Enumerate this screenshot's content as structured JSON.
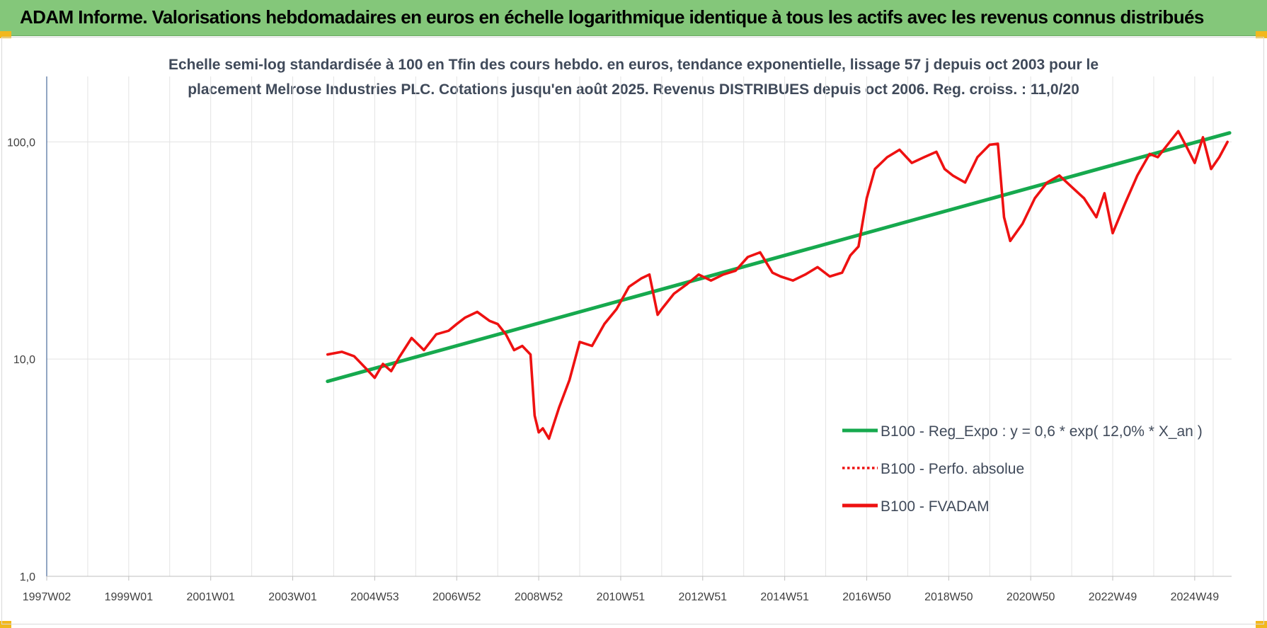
{
  "header": {
    "title": "ADAM Informe. Valorisations hebdomadaires en euros en échelle logarithmique identique à tous les actifs avec les revenus connus distribués"
  },
  "colors": {
    "banner": "#84c77a",
    "trend": "#16a94e",
    "price": "#ee1111",
    "grid": "#e3e3e3",
    "corner": "#f2b81d"
  },
  "chart_data": {
    "type": "line",
    "title": "",
    "subtitle_lines": [
      "Echelle semi-log standardisée à 100 en Tfin des cours hebdo. en euros, tendance exponentielle, lissage 57 j depuis oct 2003 pour le",
      "placement Melrose Industries PLC. Cotations jusqu'en août 2025. Revenus DISTRIBUES depuis oct 2006. Reg. croiss. : 11,0/20"
    ],
    "xlabel": "",
    "ylabel": "",
    "y_scale": "log",
    "ylim": [
      1,
      200
    ],
    "y_ticks": [
      {
        "value": 1,
        "label": "1,0"
      },
      {
        "value": 10,
        "label": "10,0"
      },
      {
        "value": 100,
        "label": "100,0"
      }
    ],
    "xlim": [
      1997.0,
      2025.9
    ],
    "x_ticks": [
      {
        "value": 1997.0,
        "label": "1997W02"
      },
      {
        "value": 1999.0,
        "label": "1999W01"
      },
      {
        "value": 2001.0,
        "label": "2001W01"
      },
      {
        "value": 2003.0,
        "label": "2003W01"
      },
      {
        "value": 2005.0,
        "label": "2004W53"
      },
      {
        "value": 2007.0,
        "label": "2006W52"
      },
      {
        "value": 2009.0,
        "label": "2008W52"
      },
      {
        "value": 2011.0,
        "label": "2010W51"
      },
      {
        "value": 2013.0,
        "label": "2012W51"
      },
      {
        "value": 2015.0,
        "label": "2014W51"
      },
      {
        "value": 2017.0,
        "label": "2016W50"
      },
      {
        "value": 2019.0,
        "label": "2018W50"
      },
      {
        "value": 2021.0,
        "label": "2020W50"
      },
      {
        "value": 2023.0,
        "label": "2022W49"
      },
      {
        "value": 2025.0,
        "label": "2024W49"
      }
    ],
    "grid": true,
    "legend_position": "bottom-right",
    "series": [
      {
        "name": "B100 - Reg_Expo : y = 0,6 * exp( 12,0% *  X_an )",
        "style": "solid",
        "color": "#16a94e",
        "x": [
          2003.85,
          2025.85
        ],
        "y": [
          7.9,
          110
        ]
      },
      {
        "name": "B100 - Perfo. absolue",
        "style": "dotted",
        "color": "#ee1111",
        "x": [],
        "y": []
      },
      {
        "name": "B100 - FVADAM",
        "style": "solid",
        "color": "#ee1111",
        "x": [
          2003.85,
          2004.2,
          2004.5,
          2004.8,
          2005.0,
          2005.2,
          2005.4,
          2005.6,
          2005.9,
          2006.2,
          2006.5,
          2006.8,
          2007.0,
          2007.2,
          2007.5,
          2007.8,
          2008.0,
          2008.2,
          2008.4,
          2008.6,
          2008.8,
          2008.9,
          2009.0,
          2009.1,
          2009.25,
          2009.5,
          2009.75,
          2010.0,
          2010.3,
          2010.6,
          2010.9,
          2011.2,
          2011.5,
          2011.7,
          2011.9,
          2012.0,
          2012.3,
          2012.6,
          2012.9,
          2013.2,
          2013.5,
          2013.8,
          2014.1,
          2014.4,
          2014.7,
          2014.9,
          2015.2,
          2015.5,
          2015.8,
          2016.1,
          2016.4,
          2016.6,
          2016.8,
          2017.0,
          2017.2,
          2017.5,
          2017.8,
          2018.1,
          2018.4,
          2018.7,
          2018.9,
          2019.1,
          2019.4,
          2019.7,
          2020.0,
          2020.2,
          2020.35,
          2020.5,
          2020.8,
          2021.1,
          2021.4,
          2021.7,
          2022.0,
          2022.3,
          2022.6,
          2022.8,
          2023.0,
          2023.3,
          2023.6,
          2023.9,
          2024.1,
          2024.3,
          2024.6,
          2024.8,
          2025.0,
          2025.2,
          2025.4,
          2025.6,
          2025.8
        ],
        "y": [
          10.5,
          10.8,
          10.3,
          9.0,
          8.2,
          9.5,
          8.8,
          10.2,
          12.5,
          11.0,
          13.0,
          13.5,
          14.5,
          15.5,
          16.5,
          15.0,
          14.5,
          13.0,
          11.0,
          11.5,
          10.5,
          5.5,
          4.6,
          4.8,
          4.3,
          6.0,
          8.0,
          12.0,
          11.5,
          14.5,
          17.0,
          21.5,
          23.5,
          24.5,
          16.0,
          17.0,
          20.0,
          22.0,
          24.5,
          23.0,
          24.5,
          25.5,
          29.5,
          31.0,
          25.0,
          24.0,
          23.0,
          24.5,
          26.5,
          24.0,
          25.0,
          30.0,
          33.0,
          55.0,
          75.0,
          85.0,
          92.0,
          80.0,
          85.0,
          90.0,
          75.0,
          70.0,
          65.0,
          85.0,
          97.0,
          98.0,
          45.0,
          35.0,
          42.0,
          55.0,
          65.0,
          70.0,
          62.0,
          55.0,
          45.0,
          58.0,
          38.0,
          52.0,
          70.0,
          88.0,
          85.0,
          95.0,
          112.0,
          95.0,
          80.0,
          105.0,
          75.0,
          85.0,
          100.0
        ]
      }
    ]
  }
}
